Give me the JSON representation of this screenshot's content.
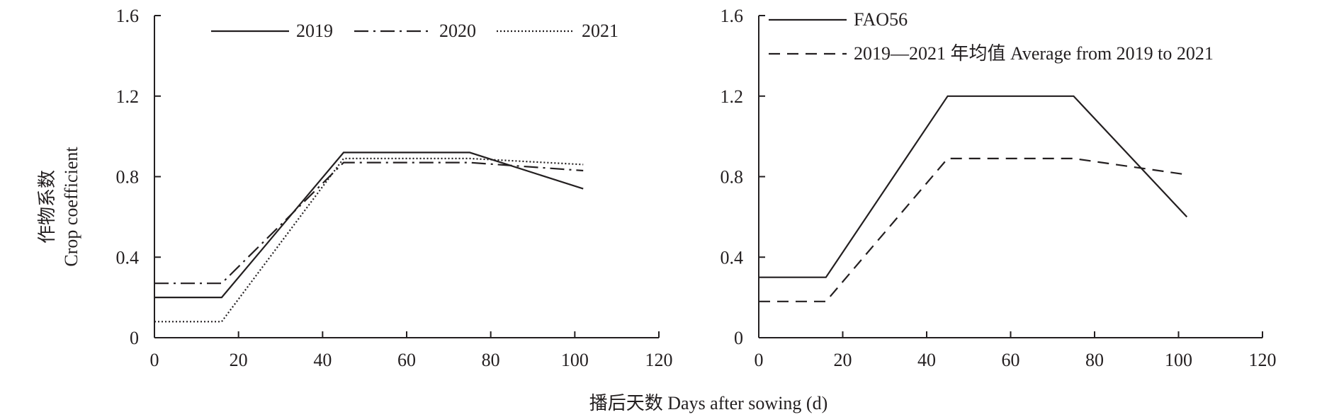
{
  "x_axis_title": "播后天数 Days after sowing (d)",
  "chart_data": [
    {
      "type": "line",
      "title": "",
      "ylabel_cn": "作物系数",
      "ylabel_en": "Crop coefficient",
      "xlabel": "",
      "xlim": [
        0,
        120
      ],
      "ylim": [
        0,
        1.6
      ],
      "x_ticks": [
        "0",
        "20",
        "40",
        "60",
        "80",
        "100",
        "120"
      ],
      "y_ticks": [
        "0",
        "0.4",
        "0.8",
        "1.2",
        "1.6"
      ],
      "grid": false,
      "legend_position": "top",
      "series": [
        {
          "name": "2019",
          "style": "solid",
          "x": [
            0,
            16,
            45,
            75,
            102
          ],
          "y": [
            0.2,
            0.2,
            0.92,
            0.92,
            0.74
          ]
        },
        {
          "name": "2020",
          "style": "dashdot",
          "x": [
            0,
            16,
            45,
            75,
            102
          ],
          "y": [
            0.27,
            0.27,
            0.87,
            0.87,
            0.83
          ]
        },
        {
          "name": "2021",
          "style": "dotted",
          "x": [
            0,
            16,
            45,
            75,
            102
          ],
          "y": [
            0.08,
            0.08,
            0.89,
            0.89,
            0.86
          ]
        }
      ]
    },
    {
      "type": "line",
      "title": "",
      "ylabel_cn": "",
      "ylabel_en": "",
      "xlabel": "",
      "xlim": [
        0,
        120
      ],
      "ylim": [
        0,
        1.6
      ],
      "x_ticks": [
        "0",
        "20",
        "40",
        "60",
        "80",
        "100",
        "120"
      ],
      "y_ticks": [
        "0",
        "0.4",
        "0.8",
        "1.2",
        "1.6"
      ],
      "grid": false,
      "legend_position": "top-left",
      "series": [
        {
          "name": "FAO56",
          "style": "solid",
          "x": [
            0,
            16,
            45,
            75,
            102
          ],
          "y": [
            0.3,
            0.3,
            1.2,
            1.2,
            0.6
          ]
        },
        {
          "name": "2019—2021 年均值 Average from 2019 to 2021",
          "style": "dashed",
          "x": [
            0,
            16,
            45,
            75,
            102
          ],
          "y": [
            0.18,
            0.18,
            0.89,
            0.89,
            0.81
          ]
        }
      ]
    }
  ]
}
